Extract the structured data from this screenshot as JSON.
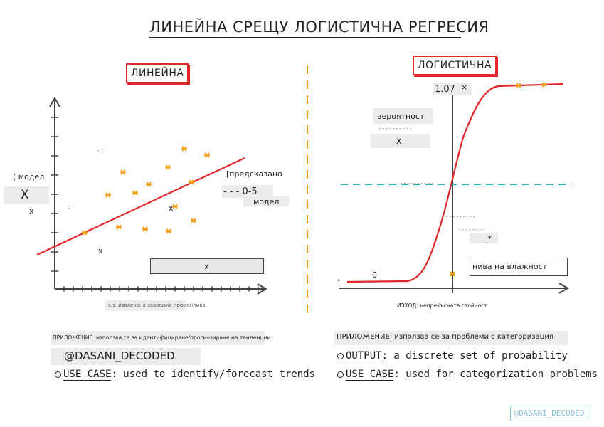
{
  "title": "ЛИНЕЙНА СРЕЩУ ЛОГИСТИЧНА РЕГРЕСИЯ",
  "linear": {
    "heading": "ЛИНЕЙНА",
    "label_model": "( модел",
    "label_X": "X",
    "label_x1": "x",
    "label_dot": "·",
    "label_x2": "x",
    "label_x3": "x",
    "label_tick": "' ~",
    "predicted": "[предсказано",
    "predicted_range": "- - - 0-5",
    "predicted_model": "модел",
    "box_x": "x",
    "x_axis_caption": "с.з. извлечена зависима променлива",
    "application_small": "ПРИЛОЖЕНИЕ: използва се за идентифициране/прогнозиране на тенденции",
    "handle": "@DASANI_DECODED",
    "use_case_label": "USE CASE",
    "use_case_text": ": used to identify/forecast trends",
    "accent": "#f39c12",
    "line_color": "#e0282a"
  },
  "logistic": {
    "heading": "ЛОГИСТИЧНА",
    "y_top": "1.07",
    "y_top_mark": "×",
    "probability": "вероятност",
    "probability_small": "- - - - - - - - - -",
    "prob_x": "x",
    "dashed_label": "- - - - - - - - - -",
    "mid_label1": "- - - - - - - - -",
    "mid_label2": "- - - - - - - -",
    "mid_label3": "_*",
    "zero": "0",
    "arrow_left": "←",
    "humidity": "нива на влажност",
    "x_caption": "ИЗХОД: непрекъсната стойност",
    "application": "ПРИЛОЖЕНИЕ: използва се за проблеми с категоризация",
    "output_label": "OUTPUT",
    "output_text": ": a discrete set of probability",
    "use_case_label": "USE CASE",
    "use_case_text": ": used for categorization problems",
    "dashed_color": "#26b3b3",
    "curve_color": "#e0282a"
  },
  "watermark": "@DASANI_DECODED",
  "divider_color": "#f39c12"
}
